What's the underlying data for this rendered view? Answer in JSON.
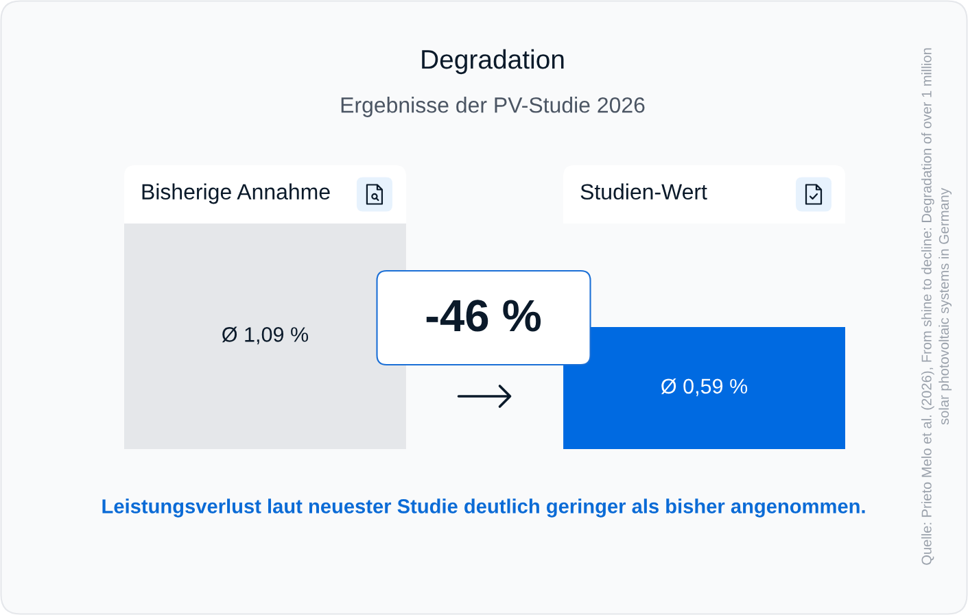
{
  "chart_data": {
    "type": "bar",
    "title": "Degradation",
    "subtitle": "Ergebnisse der PV-Studie 2026",
    "categories": [
      "Bisherige Annahme",
      "Studien-Wert"
    ],
    "values": [
      1.09,
      0.59
    ],
    "colors": [
      "#e5e7ea",
      "#006ae1"
    ],
    "value_labels": [
      "Ø 1,09 %",
      "Ø 0,59 %"
    ],
    "annotations": [
      "-46 %",
      "Leistungsverlust laut neuester Studie deutlich geringer als bisher angenommen.",
      "Quelle: Prieto Melo et al. (2026), From shine to decline: Degradation of over 1 million\nsolar photovoltaic systems in Germany"
    ]
  }
}
